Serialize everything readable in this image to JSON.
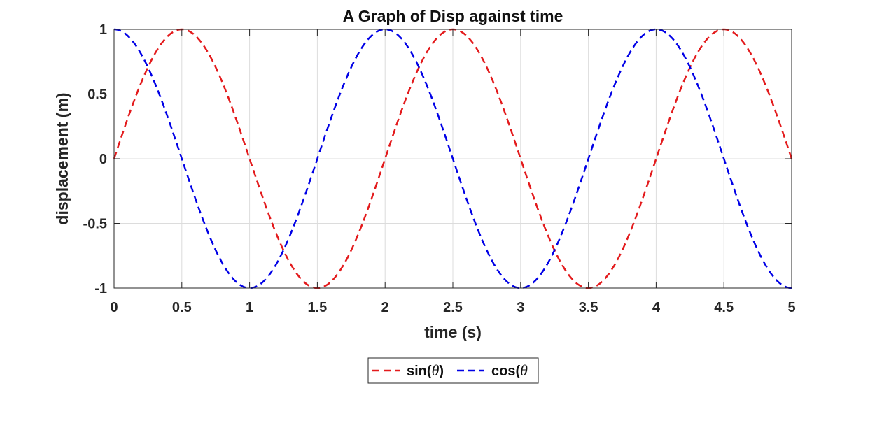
{
  "chart_data": {
    "type": "line",
    "title": "A Graph of Disp against time",
    "xlabel": "time (s)",
    "ylabel": "displacement (m)",
    "xlim": [
      0,
      5
    ],
    "ylim": [
      -1,
      1
    ],
    "xticks": [
      "0",
      "0.5",
      "1",
      "1.5",
      "2",
      "2.5",
      "3",
      "3.5",
      "4",
      "4.5",
      "5"
    ],
    "yticks": [
      "1",
      "0.5",
      "0",
      "-0.5",
      "-1"
    ],
    "grid": true,
    "legend_position": "bottom-center",
    "series": [
      {
        "name": "sin(θ)",
        "label_main": "sin(",
        "label_symbol": "θ",
        "label_end": ")",
        "function": "sin",
        "frequency_hz": 0.5,
        "color": "#e31a1c",
        "line_style": "dashed"
      },
      {
        "name": "cos(θ",
        "label_main": "cos(",
        "label_symbol": "θ",
        "label_end": "",
        "function": "cos",
        "frequency_hz": 0.5,
        "color": "#0000e6",
        "line_style": "dashed"
      }
    ]
  }
}
